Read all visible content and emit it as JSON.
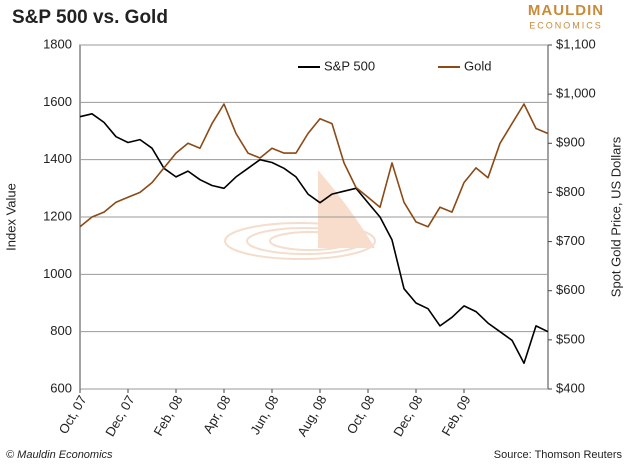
{
  "chart_data": {
    "type": "line",
    "title": "S&P 500 vs. Gold",
    "brand": [
      "MAULDIN",
      "ECONOMICS"
    ],
    "ylabel": "Index Value",
    "y2label": "Spot Gold Price, US Dollars",
    "footer_left": "© Mauldin Economics",
    "footer_right": "Source: Thomson Reuters",
    "categories": [
      "Oct, 07",
      null,
      null,
      null,
      "Dec, 07",
      null,
      null,
      null,
      "Feb, 08",
      null,
      null,
      null,
      "Apr, 08",
      null,
      null,
      null,
      "Jun, 08",
      null,
      null,
      null,
      "Aug, 08",
      null,
      null,
      null,
      "Oct, 08",
      null,
      null,
      null,
      "Dec, 08",
      null,
      null,
      null,
      "Feb, 09",
      null,
      null,
      null,
      null,
      null,
      null,
      null
    ],
    "series": [
      {
        "name": "S&P 500",
        "color": "#000000",
        "axis": "y",
        "values": [
          1550,
          1560,
          1530,
          1480,
          1460,
          1470,
          1440,
          1370,
          1340,
          1360,
          1330,
          1310,
          1300,
          1340,
          1370,
          1400,
          1390,
          1370,
          1340,
          1280,
          1250,
          1280,
          1290,
          1300,
          1250,
          1200,
          1120,
          950,
          900,
          880,
          820,
          850,
          890,
          870,
          830,
          800,
          770,
          690,
          820,
          800
        ]
      },
      {
        "name": "Gold",
        "color": "#8b4a16",
        "axis": "y2",
        "values": [
          730,
          750,
          760,
          780,
          790,
          800,
          820,
          850,
          880,
          900,
          890,
          940,
          980,
          920,
          880,
          870,
          890,
          880,
          880,
          920,
          950,
          940,
          860,
          810,
          790,
          770,
          860,
          780,
          740,
          730,
          770,
          760,
          820,
          850,
          830,
          900,
          940,
          980,
          930,
          920
        ]
      }
    ],
    "ylim": [
      600,
      1800
    ],
    "yticks": [
      600,
      800,
      1000,
      1200,
      1400,
      1600,
      1800
    ],
    "y2lim": [
      400,
      1100
    ],
    "y2ticks": [
      {
        "value": 400,
        "label": "$400"
      },
      {
        "value": 500,
        "label": "$500"
      },
      {
        "value": 600,
        "label": "$600"
      },
      {
        "value": 700,
        "label": "$700"
      },
      {
        "value": 800,
        "label": "$800"
      },
      {
        "value": 900,
        "label": "$900"
      },
      {
        "value": 1000,
        "label": "$1,000"
      },
      {
        "value": 1100,
        "label": "$1,100"
      }
    ],
    "grid": true,
    "legend": "top"
  }
}
